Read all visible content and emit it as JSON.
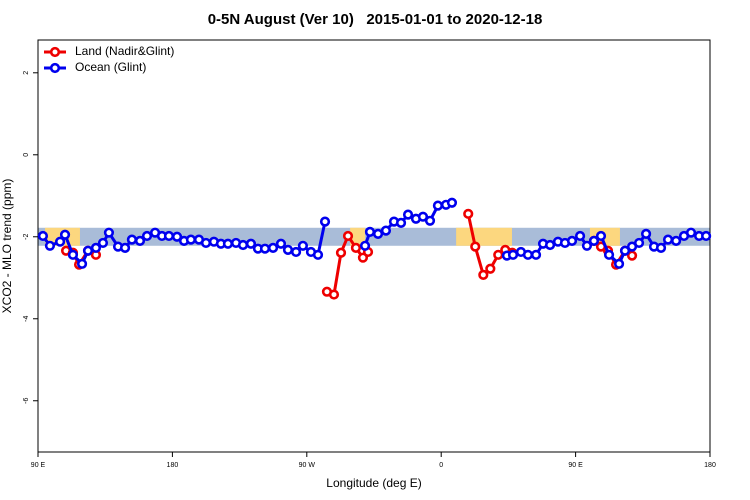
{
  "chart_data": {
    "type": "line",
    "title": "0-5N August (Ver 10)   2015-01-01 to 2020-12-18",
    "xlabel": "Longitude (deg E)",
    "ylabel": "XCO2 - MLO trend (ppm)",
    "xlim": [
      90,
      540
    ],
    "xticks": [
      {
        "value": 90,
        "label": "90 E"
      },
      180,
      {
        "value": 270,
        "label": "90 W"
      },
      {
        "value": 360,
        "label": "0"
      },
      {
        "value": 450,
        "label": "90 E"
      },
      {
        "value": 540,
        "label": "180"
      }
    ],
    "ylim": [
      -7.25,
      2.8
    ],
    "yticks": [
      2,
      0,
      -2,
      -4,
      -6
    ],
    "legend": "top-left",
    "band": {
      "y": -2,
      "ocean_color": "#a9bcd8",
      "land_color": "#fcd77f",
      "land": [
        [
          94.7,
          118.1
        ],
        [
          299,
          309
        ],
        [
          370,
          407.4
        ],
        [
          459.6,
          479.7
        ]
      ]
    },
    "series": [
      {
        "name": "Land (Nadir&Glint)",
        "color": "#ee0000",
        "x": [
          108.8,
          113.4,
          117.5,
          123.5,
          128.8,
          null,
          283.5,
          288.2,
          292.9,
          297.6,
          302.9,
          307.6,
          311.0,
          null,
          378.1,
          382.8,
          388.2,
          392.9,
          398.2,
          402.9,
          407.6,
          null,
          462.3,
          467.0,
          471.7,
          477.1,
          483.1,
          487.8
        ],
        "values": [
          -2.34,
          -2.39,
          -2.68,
          -2.34,
          -2.44,
          null,
          -3.34,
          -3.41,
          -2.39,
          -1.98,
          -2.27,
          -2.51,
          -2.37,
          null,
          -1.44,
          -2.24,
          -2.93,
          -2.78,
          -2.44,
          -2.32,
          -2.39,
          null,
          -2.1,
          -2.24,
          -2.34,
          -2.68,
          -2.34,
          -2.46
        ]
      },
      {
        "name": "Ocean (Glint)",
        "color": "#0000ee",
        "x": [
          93.3,
          98.0,
          104.8,
          108.1,
          113.4,
          119.5,
          123.5,
          128.8,
          133.5,
          137.5,
          143.6,
          148.3,
          152.9,
          158.3,
          163.0,
          168.4,
          173.0,
          177.7,
          183.1,
          187.8,
          192.4,
          197.8,
          202.5,
          207.8,
          212.5,
          217.2,
          222.6,
          227.3,
          232.6,
          237.3,
          242.0,
          247.4,
          252.7,
          257.4,
          262.8,
          267.4,
          272.8,
          277.5,
          282.2,
          null,
          309.0,
          312.3,
          317.7,
          323.0,
          328.4,
          333.1,
          337.8,
          343.1,
          347.8,
          352.5,
          357.8,
          363.2,
          367.2,
          null,
          404.0,
          408.1,
          413.4,
          418.1,
          423.5,
          428.2,
          432.9,
          438.2,
          442.9,
          447.6,
          453.0,
          457.6,
          462.3,
          467.0,
          472.4,
          479.1,
          483.1,
          487.8,
          492.5,
          497.2,
          502.5,
          507.2,
          511.9,
          517.3,
          522.6,
          527.3,
          532.7,
          537.4
        ],
        "values": [
          -1.98,
          -2.22,
          -2.12,
          -1.95,
          -2.44,
          -2.66,
          -2.34,
          -2.27,
          -2.15,
          -1.9,
          -2.24,
          -2.27,
          -2.07,
          -2.1,
          -1.98,
          -1.9,
          -1.98,
          -1.98,
          -2.0,
          -2.1,
          -2.07,
          -2.07,
          -2.15,
          -2.12,
          -2.17,
          -2.17,
          -2.15,
          -2.2,
          -2.17,
          -2.29,
          -2.29,
          -2.27,
          -2.17,
          -2.32,
          -2.37,
          -2.22,
          -2.37,
          -2.44,
          -1.63,
          null,
          -2.22,
          -1.88,
          -1.93,
          -1.85,
          -1.63,
          -1.66,
          -1.46,
          -1.56,
          -1.51,
          -1.61,
          -1.24,
          -1.22,
          -1.17,
          null,
          -2.46,
          -2.44,
          -2.37,
          -2.44,
          -2.44,
          -2.17,
          -2.2,
          -2.12,
          -2.15,
          -2.1,
          -1.98,
          -2.22,
          -2.1,
          -1.98,
          -2.44,
          -2.66,
          -2.34,
          -2.24,
          -2.15,
          -1.93,
          -2.24,
          -2.27,
          -2.07,
          -2.1,
          -1.98,
          -1.9,
          -1.98,
          -1.98
        ]
      }
    ]
  }
}
